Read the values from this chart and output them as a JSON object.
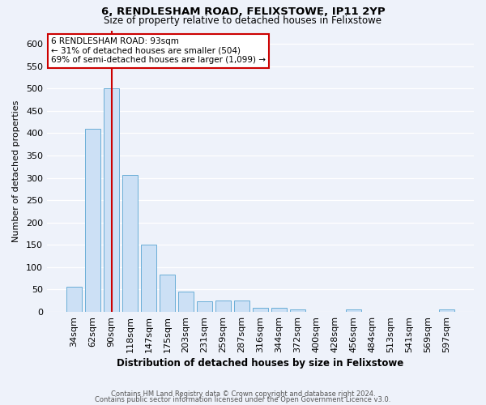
{
  "title1": "6, RENDLESHAM ROAD, FELIXSTOWE, IP11 2YP",
  "title2": "Size of property relative to detached houses in Felixstowe",
  "xlabel": "Distribution of detached houses by size in Felixstowe",
  "ylabel": "Number of detached properties",
  "categories": [
    "34sqm",
    "62sqm",
    "90sqm",
    "118sqm",
    "147sqm",
    "175sqm",
    "203sqm",
    "231sqm",
    "259sqm",
    "287sqm",
    "316sqm",
    "344sqm",
    "372sqm",
    "400sqm",
    "428sqm",
    "456sqm",
    "484sqm",
    "513sqm",
    "541sqm",
    "569sqm",
    "597sqm"
  ],
  "values": [
    57,
    410,
    500,
    307,
    150,
    84,
    45,
    23,
    25,
    25,
    10,
    9,
    5,
    0,
    0,
    5,
    0,
    0,
    0,
    0,
    5
  ],
  "bar_color": "#cce0f5",
  "bar_edge_color": "#6aaed6",
  "vline_x": 2,
  "vline_color": "#cc0000",
  "annotation_text": "6 RENDLESHAM ROAD: 93sqm\n← 31% of detached houses are smaller (504)\n69% of semi-detached houses are larger (1,099) →",
  "annotation_box_color": "#ffffff",
  "annotation_box_edge": "#cc0000",
  "footer_line1": "Contains HM Land Registry data © Crown copyright and database right 2024.",
  "footer_line2": "Contains public sector information licensed under the Open Government Licence v3.0.",
  "ylim": [
    0,
    630
  ],
  "yticks": [
    0,
    50,
    100,
    150,
    200,
    250,
    300,
    350,
    400,
    450,
    500,
    550,
    600
  ],
  "bg_color": "#eef2fa",
  "grid_color": "#ffffff",
  "fig_width": 6.0,
  "fig_height": 5.0,
  "dpi": 100
}
